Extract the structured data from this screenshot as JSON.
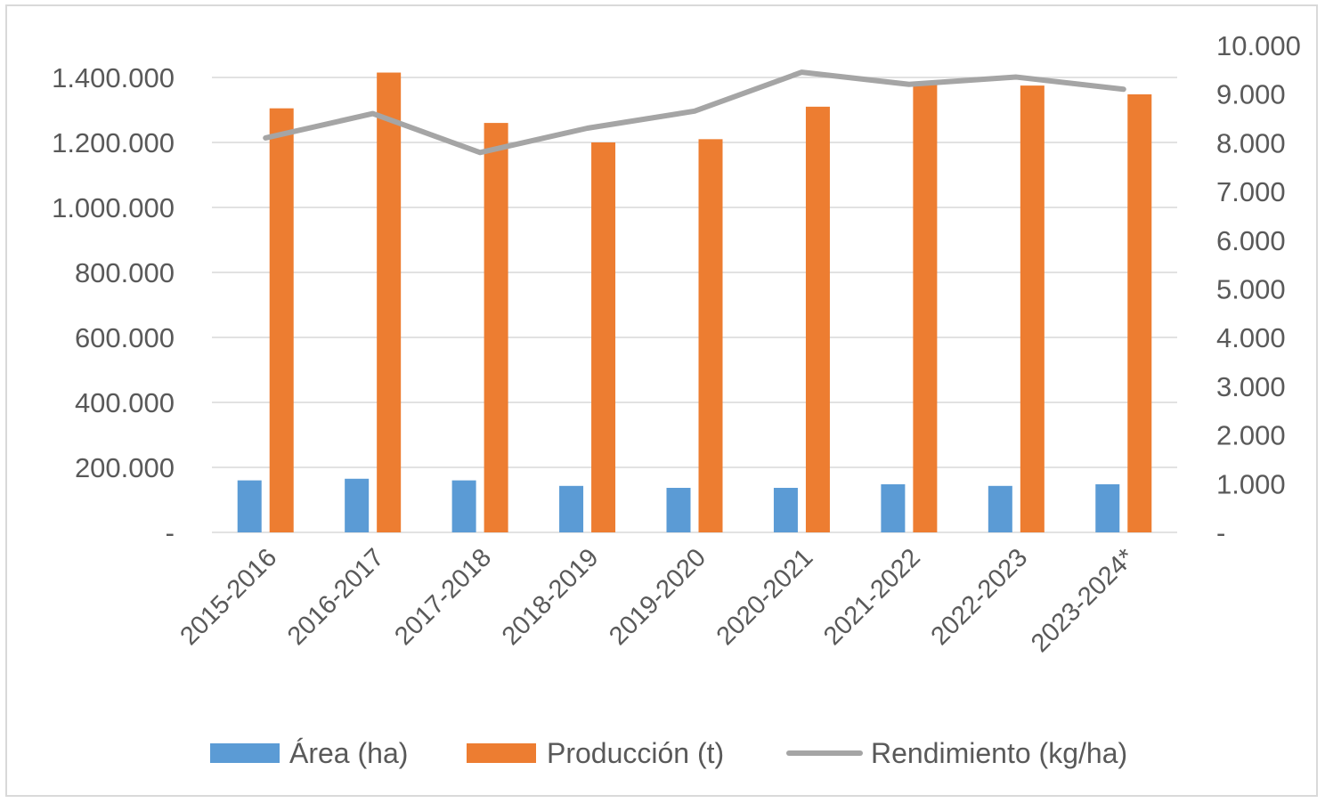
{
  "colors": {
    "area": "#5b9bd5",
    "produccion": "#ed7d31",
    "rendimiento": "#a5a5a5",
    "gridline": "#d9d9d9",
    "text": "#595959"
  },
  "chart_data": {
    "type": "bar",
    "categories": [
      "2015-2016",
      "2016-2017",
      "2017-2018",
      "2018-2019",
      "2019-2020",
      "2020-2021",
      "2021-2022",
      "2022-2023",
      "2023-2024*"
    ],
    "series": [
      {
        "name": "Área (ha)",
        "type": "bar",
        "axis": "left",
        "values": [
          160000,
          165000,
          160000,
          143000,
          137000,
          137000,
          148000,
          143000,
          148000
        ]
      },
      {
        "name": "Producción (t)",
        "type": "bar",
        "axis": "left",
        "values": [
          1305000,
          1415000,
          1260000,
          1200000,
          1210000,
          1310000,
          1385000,
          1375000,
          1348000
        ]
      },
      {
        "name": "Rendimiento (kg/ha)",
        "type": "line",
        "axis": "right",
        "values": [
          8100,
          8600,
          7800,
          8300,
          8650,
          9450,
          9200,
          9350,
          9100
        ]
      }
    ],
    "y_left": {
      "lim": [
        0,
        1500000
      ],
      "ticks": [
        0,
        200000,
        400000,
        600000,
        800000,
        1000000,
        1200000,
        1400000
      ],
      "tick_labels": [
        "-",
        "200.000",
        "400.000",
        "600.000",
        "800.000",
        "1.000.000",
        "1.200.000",
        "1.400.000"
      ]
    },
    "y_right": {
      "lim": [
        0,
        10000
      ],
      "ticks": [
        0,
        1000,
        2000,
        3000,
        4000,
        5000,
        6000,
        7000,
        8000,
        9000,
        10000
      ],
      "tick_labels": [
        "-",
        "1.000",
        "2.000",
        "3.000",
        "4.000",
        "5.000",
        "6.000",
        "7.000",
        "8.000",
        "9.000",
        "10.000"
      ]
    },
    "gridlines": true,
    "legend_position": "bottom"
  }
}
